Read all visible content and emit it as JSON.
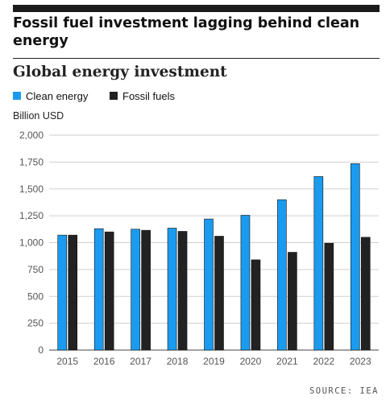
{
  "headline": "Fossil fuel investment lagging behind clean energy",
  "chart_data": {
    "type": "bar",
    "title": "Global energy investment",
    "ylabel": "Billion USD",
    "xlabel": "",
    "categories": [
      "2015",
      "2016",
      "2017",
      "2018",
      "2019",
      "2020",
      "2021",
      "2022",
      "2023"
    ],
    "series": [
      {
        "name": "Clean energy",
        "color": "#1a9bf0",
        "values": [
          1070,
          1130,
          1125,
          1135,
          1220,
          1255,
          1400,
          1615,
          1735
        ]
      },
      {
        "name": "Fossil fuels",
        "color": "#222222",
        "values": [
          1070,
          1100,
          1115,
          1105,
          1060,
          840,
          910,
          995,
          1050
        ]
      }
    ],
    "ylim": [
      0,
      2000
    ],
    "yticks": [
      0,
      250,
      500,
      750,
      1000,
      1250,
      1500,
      1750,
      2000
    ],
    "ytick_labels": [
      "0",
      "250",
      "500",
      "750",
      "1,000",
      "1,250",
      "1,500",
      "1,750",
      "2,000"
    ],
    "grid": true,
    "legend_position": "top-left"
  },
  "source": "SOURCE: IEA"
}
